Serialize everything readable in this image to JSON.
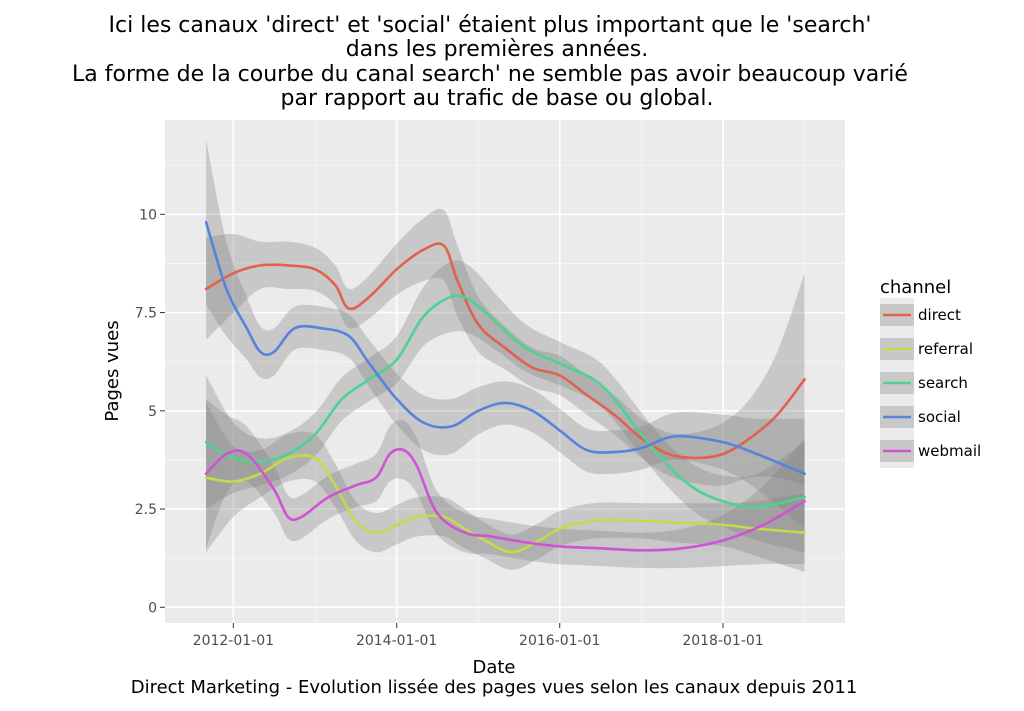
{
  "chart_data": {
    "type": "line",
    "title_lines": [
      "Ici les canaux 'direct' et 'social' étaient plus important que le 'search'",
      "dans les premières années.",
      "La forme de la courbe du canal search' ne semble pas avoir beaucoup varié",
      "par rapport au trafic de base ou global."
    ],
    "caption": "Direct Marketing - Evolution lissée des pages vues selon les canaux depuis 2011",
    "xlabel": "Date",
    "ylabel": "Pages vues",
    "x_ticks": [
      "2012-01-01",
      "2014-01-01",
      "2016-01-01",
      "2018-01-01"
    ],
    "y_ticks": [
      "0",
      "2.5",
      "5",
      "7.5",
      "10"
    ],
    "x_range": [
      "2011-03-01",
      "2019-07-01"
    ],
    "ylim": [
      -0.4,
      12.4
    ],
    "grid": true,
    "background": "#ebebeb",
    "legend": {
      "title": "channel",
      "placement": "right"
    },
    "series": [
      {
        "name": "direct",
        "color": "#e2614d",
        "x": [
          "2011-09-01",
          "2012-01-01",
          "2012-05-01",
          "2012-09-01",
          "2013-01-01",
          "2013-04-01",
          "2013-06-01",
          "2013-09-01",
          "2014-01-01",
          "2014-05-01",
          "2014-08-01",
          "2014-10-01",
          "2015-01-01",
          "2015-05-01",
          "2015-09-01",
          "2016-01-01",
          "2016-05-01",
          "2016-09-01",
          "2017-01-01",
          "2017-05-01",
          "2017-09-01",
          "2018-01-01",
          "2018-05-01",
          "2018-09-01",
          "2019-01-01"
        ],
        "y": [
          8.1,
          8.5,
          8.7,
          8.7,
          8.6,
          8.2,
          7.6,
          7.9,
          8.6,
          9.1,
          9.2,
          8.3,
          7.2,
          6.6,
          6.1,
          5.9,
          5.4,
          4.9,
          4.3,
          3.9,
          3.8,
          3.9,
          4.3,
          4.9,
          5.8
        ],
        "band_half": [
          1.3,
          1.0,
          0.6,
          0.6,
          0.55,
          0.5,
          0.5,
          0.55,
          0.65,
          0.8,
          0.9,
          0.9,
          0.7,
          0.55,
          0.5,
          0.5,
          0.5,
          0.5,
          0.5,
          0.55,
          0.65,
          0.8,
          1.0,
          1.6,
          2.7
        ]
      },
      {
        "name": "referral",
        "color": "#c2dc49",
        "x": [
          "2011-09-01",
          "2012-01-01",
          "2012-05-01",
          "2012-09-01",
          "2013-01-01",
          "2013-04-01",
          "2013-07-01",
          "2013-10-01",
          "2014-01-01",
          "2014-04-01",
          "2014-08-01",
          "2014-11-01",
          "2015-02-01",
          "2015-06-01",
          "2015-10-01",
          "2016-01-01",
          "2016-06-01",
          "2017-01-01",
          "2017-06-01",
          "2018-01-01",
          "2018-06-01",
          "2019-01-01"
        ],
        "y": [
          3.3,
          3.2,
          3.4,
          3.8,
          3.8,
          3.1,
          2.2,
          1.9,
          2.1,
          2.3,
          2.3,
          2.0,
          1.7,
          1.4,
          1.7,
          2.0,
          2.2,
          2.2,
          2.15,
          2.1,
          2.0,
          1.9
        ],
        "band_half": [
          1.9,
          0.9,
          0.6,
          0.6,
          0.6,
          0.55,
          0.5,
          0.5,
          0.5,
          0.5,
          0.5,
          0.5,
          0.45,
          0.45,
          0.45,
          0.45,
          0.45,
          0.45,
          0.5,
          0.55,
          0.7,
          1.0
        ]
      },
      {
        "name": "search",
        "color": "#4ed292",
        "x": [
          "2011-09-01",
          "2012-01-01",
          "2012-05-01",
          "2012-09-01",
          "2013-01-01",
          "2013-05-01",
          "2013-09-01",
          "2014-01-01",
          "2014-05-01",
          "2014-09-01",
          "2014-12-01",
          "2015-04-01",
          "2015-08-01",
          "2016-01-01",
          "2016-06-01",
          "2016-09-01",
          "2017-01-01",
          "2017-05-01",
          "2017-09-01",
          "2018-01-01",
          "2018-06-01",
          "2019-01-01"
        ],
        "y": [
          4.2,
          3.8,
          3.7,
          3.9,
          4.4,
          5.3,
          5.8,
          6.3,
          7.4,
          7.9,
          7.8,
          7.2,
          6.6,
          6.2,
          5.8,
          5.3,
          4.4,
          3.6,
          3.0,
          2.7,
          2.55,
          2.8
        ],
        "band_half": [
          1.7,
          0.9,
          0.6,
          0.55,
          0.55,
          0.55,
          0.55,
          0.6,
          0.75,
          0.9,
          0.85,
          0.7,
          0.6,
          0.55,
          0.55,
          0.55,
          0.55,
          0.55,
          0.6,
          0.65,
          0.85,
          1.4
        ]
      },
      {
        "name": "social",
        "color": "#5784db",
        "x": [
          "2011-09-01",
          "2011-12-01",
          "2012-03-01",
          "2012-05-01",
          "2012-07-01",
          "2012-10-01",
          "2013-02-01",
          "2013-06-01",
          "2013-09-01",
          "2014-01-01",
          "2014-05-01",
          "2014-09-01",
          "2015-01-01",
          "2015-05-01",
          "2015-09-01",
          "2016-01-01",
          "2016-05-01",
          "2016-09-01",
          "2017-01-01",
          "2017-06-01",
          "2018-01-01",
          "2018-06-01",
          "2019-01-01"
        ],
        "y": [
          9.8,
          8.1,
          7.1,
          6.5,
          6.5,
          7.1,
          7.1,
          6.9,
          6.2,
          5.3,
          4.7,
          4.6,
          5.0,
          5.2,
          5.0,
          4.5,
          4.0,
          3.95,
          4.05,
          4.35,
          4.2,
          3.9,
          3.4
        ],
        "band_half": [
          2.1,
          1.2,
          0.8,
          0.65,
          0.6,
          0.55,
          0.55,
          0.55,
          0.6,
          0.65,
          0.7,
          0.7,
          0.6,
          0.55,
          0.55,
          0.55,
          0.55,
          0.55,
          0.55,
          0.6,
          0.7,
          0.9,
          1.4
        ]
      },
      {
        "name": "webmail",
        "color": "#d152d4",
        "x": [
          "2011-09-01",
          "2011-12-01",
          "2012-03-01",
          "2012-07-01",
          "2012-09-01",
          "2012-11-01",
          "2013-03-01",
          "2013-07-01",
          "2013-10-01",
          "2013-12-01",
          "2014-02-01",
          "2014-04-01",
          "2014-07-01",
          "2014-11-01",
          "2015-03-01",
          "2015-08-01",
          "2016-01-01",
          "2016-07-01",
          "2017-01-01",
          "2017-07-01",
          "2018-01-01",
          "2018-07-01",
          "2019-01-01"
        ],
        "y": [
          3.4,
          3.9,
          3.9,
          3.0,
          2.3,
          2.3,
          2.8,
          3.1,
          3.3,
          3.9,
          4.0,
          3.6,
          2.4,
          1.9,
          1.8,
          1.65,
          1.55,
          1.5,
          1.45,
          1.5,
          1.7,
          2.1,
          2.7
        ],
        "band_half": [
          1.9,
          1.0,
          0.7,
          0.6,
          0.55,
          0.55,
          0.55,
          0.55,
          0.6,
          0.7,
          0.75,
          0.7,
          0.55,
          0.5,
          0.45,
          0.45,
          0.45,
          0.45,
          0.45,
          0.5,
          0.65,
          1.0,
          1.6
        ]
      }
    ]
  }
}
